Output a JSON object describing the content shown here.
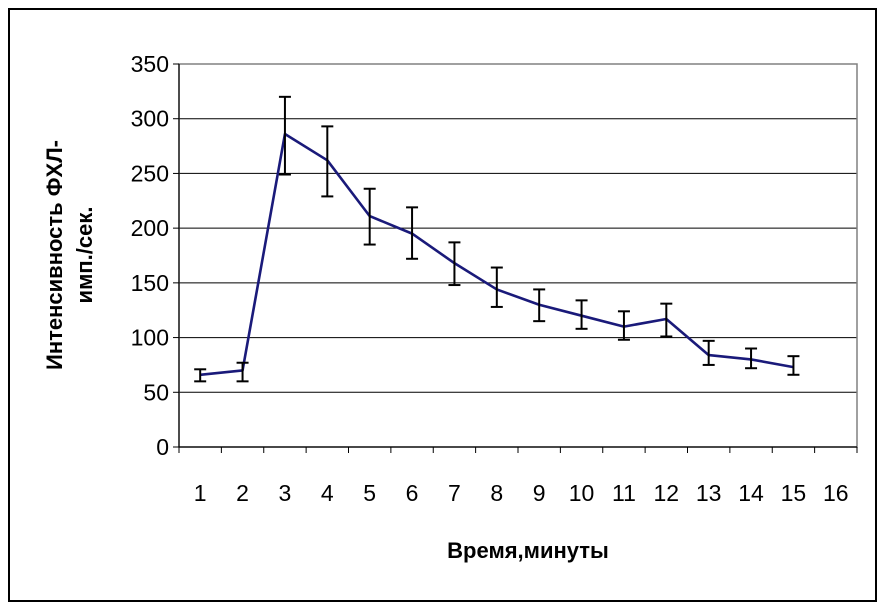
{
  "chart_data": {
    "type": "line",
    "title": "",
    "xlabel": "Время,минуты",
    "ylabel_lines": [
      "Интенсивность ФХЛ-",
      "имп./сек."
    ],
    "x_ticks": [
      "1",
      "2",
      "3",
      "4",
      "5",
      "6",
      "7",
      "8",
      "9",
      "10",
      "11",
      "12",
      "13",
      "14",
      "15",
      "16"
    ],
    "y_ticks": [
      "0",
      "50",
      "100",
      "150",
      "200",
      "250",
      "300",
      "350"
    ],
    "ylim": [
      0,
      350
    ],
    "xlim": [
      0.5,
      16.5
    ],
    "grid": true,
    "series": [
      {
        "x": [
          1,
          2,
          3,
          4,
          5,
          6,
          7,
          8,
          9,
          10,
          11,
          12,
          13,
          14,
          15
        ],
        "values": [
          66,
          70,
          286,
          262,
          211,
          195,
          168,
          144,
          130,
          120,
          110,
          117,
          84,
          80,
          73
        ],
        "error_low": [
          60,
          60,
          249,
          229,
          185,
          172,
          148,
          128,
          115,
          108,
          98,
          101,
          75,
          72,
          66
        ],
        "error_high": [
          71,
          77,
          320,
          293,
          236,
          219,
          187,
          164,
          144,
          134,
          124,
          131,
          97,
          90,
          83
        ]
      }
    ]
  },
  "colors": {
    "line": "#1a1a7a",
    "error_bar": "#000000",
    "grid": "#000000",
    "plot_border": "#808080"
  }
}
